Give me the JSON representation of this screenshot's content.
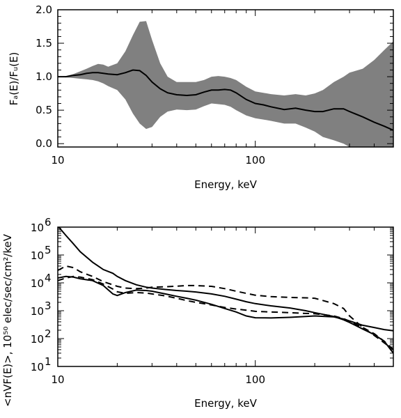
{
  "chart_data": [
    {
      "type": "area",
      "xlabel": "Energy, keV",
      "ylabel": "Fₐ(E)/Fᵤ(E)",
      "xscale": "log",
      "xlim": [
        10,
        500
      ],
      "ylim": [
        -0.05,
        2.0
      ],
      "xticks": [
        10,
        100
      ],
      "xtick_labels": [
        "10",
        "100"
      ],
      "yticks": [
        0.0,
        0.5,
        1.0,
        1.5,
        2.0
      ],
      "ytick_labels": [
        "0.0",
        "0.5",
        "1.0",
        "1.5",
        "2.0"
      ],
      "grid": false,
      "band_color": "#808080",
      "x": [
        10,
        11,
        12,
        13,
        14,
        15,
        16,
        17,
        18,
        20,
        22,
        24,
        26,
        28,
        30,
        33,
        36,
        40,
        45,
        50,
        55,
        60,
        65,
        70,
        75,
        80,
        90,
        100,
        110,
        120,
        140,
        160,
        180,
        200,
        220,
        250,
        280,
        300,
        350,
        400,
        450,
        500
      ],
      "series": [
        {
          "values": [
            1.0,
            1.0,
            1.02,
            1.03,
            1.05,
            1.06,
            1.06,
            1.05,
            1.04,
            1.03,
            1.06,
            1.1,
            1.09,
            1.02,
            0.92,
            0.82,
            0.76,
            0.73,
            0.72,
            0.73,
            0.77,
            0.8,
            0.8,
            0.81,
            0.8,
            0.76,
            0.66,
            0.6,
            0.58,
            0.55,
            0.51,
            0.53,
            0.5,
            0.48,
            0.48,
            0.52,
            0.52,
            0.48,
            0.4,
            0.32,
            0.26,
            0.2
          ]
        },
        {
          "values": [
            1.0,
            1.01,
            1.04,
            1.08,
            1.12,
            1.16,
            1.19,
            1.18,
            1.15,
            1.2,
            1.38,
            1.62,
            1.82,
            1.83,
            1.55,
            1.2,
            1.0,
            0.92,
            0.92,
            0.92,
            0.95,
            1.0,
            1.01,
            1.0,
            0.98,
            0.95,
            0.85,
            0.78,
            0.76,
            0.74,
            0.72,
            0.74,
            0.72,
            0.75,
            0.8,
            0.92,
            1.0,
            1.06,
            1.12,
            1.25,
            1.4,
            1.53
          ]
        },
        {
          "values": [
            1.0,
            0.99,
            0.98,
            0.97,
            0.96,
            0.95,
            0.93,
            0.9,
            0.86,
            0.8,
            0.66,
            0.45,
            0.3,
            0.22,
            0.25,
            0.4,
            0.48,
            0.51,
            0.5,
            0.51,
            0.56,
            0.6,
            0.59,
            0.58,
            0.55,
            0.5,
            0.42,
            0.38,
            0.36,
            0.34,
            0.3,
            0.3,
            0.24,
            0.18,
            0.1,
            0.05,
            0.0,
            -0.05,
            -0.05,
            -0.05,
            -0.05,
            -0.05
          ]
        }
      ]
    },
    {
      "type": "line",
      "xlabel": "Energy, keV",
      "ylabel": "<nVF(E)>, 10⁵⁰ elec/sec/cm²/keV",
      "xscale": "log",
      "yscale": "log",
      "xlim": [
        10,
        500
      ],
      "ylim": [
        10,
        1000000
      ],
      "xticks": [
        10,
        100
      ],
      "xtick_labels": [
        "10",
        "100"
      ],
      "yticks": [
        10,
        100,
        1000,
        10000,
        100000,
        1000000
      ],
      "ytick_labels": [
        {
          "base": "10",
          "exp": "1"
        },
        {
          "base": "10",
          "exp": "2"
        },
        {
          "base": "10",
          "exp": "3"
        },
        {
          "base": "10",
          "exp": "4"
        },
        {
          "base": "10",
          "exp": "5"
        },
        {
          "base": "10",
          "exp": "6"
        }
      ],
      "grid": false,
      "x": [
        10,
        11,
        12,
        13,
        15,
        17,
        19,
        20,
        22,
        25,
        28,
        30,
        35,
        40,
        45,
        50,
        60,
        70,
        80,
        90,
        100,
        120,
        150,
        180,
        200,
        250,
        280,
        300,
        350,
        400,
        450,
        500
      ],
      "series": [
        {
          "style": "solid",
          "values": [
            1100000,
            500000,
            250000,
            130000,
            55000,
            30000,
            22000,
            17000,
            12000,
            8500,
            7000,
            6500,
            5800,
            5300,
            5000,
            4700,
            4000,
            3300,
            2600,
            2100,
            1800,
            1500,
            1250,
            1000,
            850,
            620,
            470,
            380,
            220,
            140,
            80,
            30
          ]
        },
        {
          "style": "dashed",
          "values": [
            28000,
            40000,
            35000,
            25000,
            17000,
            11000,
            8500,
            7500,
            6500,
            6200,
            6500,
            7000,
            7200,
            7600,
            8000,
            8000,
            7500,
            6200,
            5000,
            4200,
            3600,
            3200,
            3000,
            2900,
            2800,
            1800,
            1200,
            650,
            250,
            130,
            70,
            40
          ]
        },
        {
          "style": "dashed",
          "values": [
            12000,
            15000,
            17000,
            16000,
            13000,
            9000,
            6000,
            4800,
            4200,
            4500,
            4300,
            4000,
            3400,
            2800,
            2300,
            2000,
            1600,
            1300,
            1150,
            1050,
            950,
            900,
            850,
            800,
            780,
            650,
            520,
            420,
            250,
            150,
            80,
            40
          ]
        },
        {
          "style": "solid",
          "values": [
            15000,
            17000,
            16000,
            14000,
            12000,
            8000,
            4000,
            3500,
            4500,
            5500,
            5300,
            5000,
            4000,
            3300,
            2800,
            2400,
            1700,
            1200,
            900,
            650,
            560,
            550,
            580,
            620,
            650,
            600,
            500,
            430,
            300,
            250,
            210,
            190
          ]
        }
      ]
    }
  ]
}
